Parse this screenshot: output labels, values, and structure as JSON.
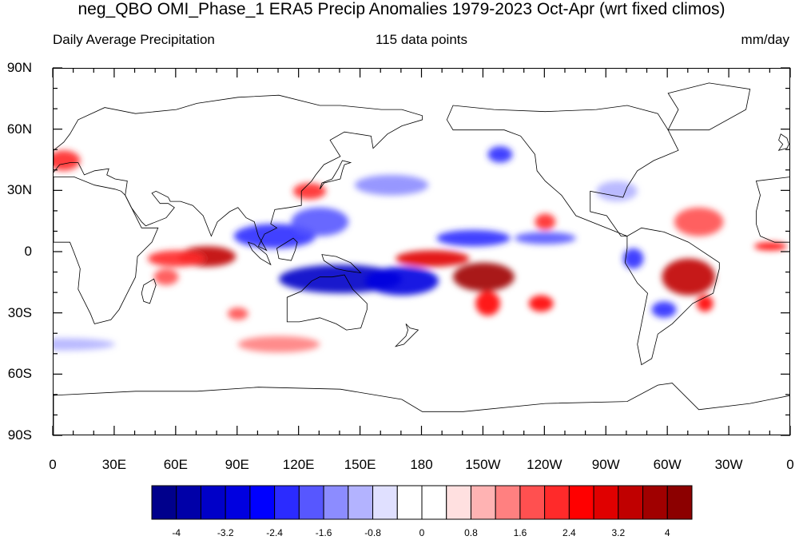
{
  "header": {
    "title": "neg_QBO OMI_Phase_1 ERA5 Precip Anomalies 1979-2023 Oct-Apr (wrt fixed climos)",
    "left": "Daily Average Precipitation",
    "center": "115 data points",
    "right": "mm/day"
  },
  "axes": {
    "lat_labels": [
      "90N",
      "60N",
      "30N",
      "0",
      "30S",
      "60S",
      "90S"
    ],
    "lat_values": [
      90,
      60,
      30,
      0,
      -30,
      -60,
      -90
    ],
    "lon_labels": [
      "0",
      "30E",
      "60E",
      "90E",
      "120E",
      "150E",
      "180",
      "150W",
      "120W",
      "90W",
      "60W",
      "30W",
      "0"
    ],
    "lon_values": [
      0,
      30,
      60,
      90,
      120,
      150,
      180,
      210,
      240,
      270,
      300,
      330,
      360
    ]
  },
  "colorbar": {
    "labels": [
      "-4",
      "-3.2",
      "-2.4",
      "-1.6",
      "-0.8",
      "0",
      "0.8",
      "1.6",
      "2.4",
      "3.2",
      "4"
    ],
    "label_values": [
      -4,
      -3.2,
      -2.4,
      -1.6,
      -0.8,
      0,
      0.8,
      1.6,
      2.4,
      3.2,
      4
    ],
    "colors": [
      "#00008c",
      "#0000a8",
      "#0000c8",
      "#0000e0",
      "#0000ff",
      "#2b2bff",
      "#5757ff",
      "#8c8cff",
      "#b3b3ff",
      "#e0e0ff",
      "#ffffff",
      "#ffffff",
      "#ffe0e0",
      "#ffb3b3",
      "#ff8080",
      "#ff5050",
      "#ff2a2a",
      "#ff0000",
      "#e00000",
      "#c00000",
      "#a00000",
      "#8c0000"
    ]
  },
  "map_data": {
    "lon_range": [
      0,
      360
    ],
    "lat_range": [
      -90,
      90
    ],
    "anomalies": [
      {
        "lon": 75,
        "lat": -2,
        "rx": 14,
        "ry": 5,
        "value": 3.2
      },
      {
        "lon": 60,
        "lat": -3,
        "rx": 14,
        "ry": 4,
        "value": 2.0
      },
      {
        "lon": 55,
        "lat": -12,
        "rx": 6,
        "ry": 4,
        "value": 1.6
      },
      {
        "lon": 90,
        "lat": -30,
        "rx": 5,
        "ry": 3,
        "value": 1.6
      },
      {
        "lon": 108,
        "lat": 8,
        "rx": 20,
        "ry": 6,
        "value": -2.4
      },
      {
        "lon": 130,
        "lat": 15,
        "rx": 14,
        "ry": 7,
        "value": -2.0
      },
      {
        "lon": 140,
        "lat": -13,
        "rx": 30,
        "ry": 7,
        "value": -3.6
      },
      {
        "lon": 170,
        "lat": -14,
        "rx": 18,
        "ry": 7,
        "value": -3.0
      },
      {
        "lon": 185,
        "lat": -3,
        "rx": 18,
        "ry": 4,
        "value": 2.8
      },
      {
        "lon": 210,
        "lat": -12,
        "rx": 15,
        "ry": 7,
        "value": 3.6
      },
      {
        "lon": 212,
        "lat": -25,
        "rx": 6,
        "ry": 6,
        "value": 2.4
      },
      {
        "lon": 238,
        "lat": -25,
        "rx": 6,
        "ry": 4,
        "value": 2.4
      },
      {
        "lon": 205,
        "lat": 7,
        "rx": 18,
        "ry": 4,
        "value": -2.4
      },
      {
        "lon": 240,
        "lat": 7,
        "rx": 15,
        "ry": 3,
        "value": -2.0
      },
      {
        "lon": 283,
        "lat": -3,
        "rx": 5,
        "ry": 5,
        "value": -2.4
      },
      {
        "lon": 310,
        "lat": -12,
        "rx": 13,
        "ry": 9,
        "value": 3.2
      },
      {
        "lon": 318,
        "lat": -25,
        "rx": 4,
        "ry": 4,
        "value": 2.4
      },
      {
        "lon": 298,
        "lat": -28,
        "rx": 6,
        "ry": 4,
        "value": -2.4
      },
      {
        "lon": 350,
        "lat": 3,
        "rx": 8,
        "ry": 2,
        "value": 2.4
      },
      {
        "lon": 5,
        "lat": 45,
        "rx": 8,
        "ry": 5,
        "value": 2.0
      },
      {
        "lon": 125,
        "lat": 30,
        "rx": 8,
        "ry": 4,
        "value": 2.0
      },
      {
        "lon": 165,
        "lat": 33,
        "rx": 18,
        "ry": 5,
        "value": -1.6
      },
      {
        "lon": 218,
        "lat": 48,
        "rx": 6,
        "ry": 4,
        "value": -2.4
      },
      {
        "lon": 315,
        "lat": 15,
        "rx": 12,
        "ry": 7,
        "value": 1.6
      },
      {
        "lon": 275,
        "lat": 30,
        "rx": 10,
        "ry": 5,
        "value": -1.2
      },
      {
        "lon": 240,
        "lat": 15,
        "rx": 5,
        "ry": 4,
        "value": 2.0
      },
      {
        "lon": 5,
        "lat": -45,
        "rx": 25,
        "ry": 3,
        "value": -1.2
      },
      {
        "lon": 110,
        "lat": -45,
        "rx": 20,
        "ry": 4,
        "value": 1.2
      }
    ],
    "land": [
      {
        "name": "north-america",
        "points": [
          [
            192,
            65
          ],
          [
            195,
            72
          ],
          [
            215,
            70
          ],
          [
            240,
            69
          ],
          [
            265,
            70
          ],
          [
            280,
            72
          ],
          [
            295,
            68
          ],
          [
            300,
            60
          ],
          [
            305,
            50
          ],
          [
            293,
            45
          ],
          [
            285,
            40
          ],
          [
            280,
            32
          ],
          [
            278,
            27
          ],
          [
            262,
            30
          ],
          [
            262,
            20
          ],
          [
            270,
            18
          ],
          [
            277,
            8
          ],
          [
            280,
            8
          ],
          [
            255,
            18
          ],
          [
            248,
            28
          ],
          [
            240,
            35
          ],
          [
            236,
            40
          ],
          [
            235,
            48
          ],
          [
            228,
            57
          ],
          [
            220,
            60
          ],
          [
            205,
            60
          ],
          [
            195,
            60
          ]
        ]
      },
      {
        "name": "greenland",
        "points": [
          [
            300,
            60
          ],
          [
            305,
            70
          ],
          [
            300,
            78
          ],
          [
            320,
            83
          ],
          [
            340,
            80
          ],
          [
            338,
            70
          ],
          [
            320,
            60
          ]
        ]
      },
      {
        "name": "south-america",
        "points": [
          [
            280,
            8
          ],
          [
            287,
            12
          ],
          [
            298,
            10
          ],
          [
            310,
            5
          ],
          [
            325,
            -5
          ],
          [
            325,
            -8
          ],
          [
            322,
            -20
          ],
          [
            312,
            -25
          ],
          [
            302,
            -35
          ],
          [
            295,
            -40
          ],
          [
            292,
            -52
          ],
          [
            287,
            -55
          ],
          [
            285,
            -45
          ],
          [
            287,
            -35
          ],
          [
            290,
            -20
          ],
          [
            285,
            -15
          ],
          [
            279,
            -5
          ],
          [
            280,
            2
          ]
        ]
      },
      {
        "name": "africa",
        "points": [
          [
            343,
            35
          ],
          [
            345,
            28
          ],
          [
            343,
            20
          ],
          [
            343,
            14
          ],
          [
            345,
            8
          ],
          [
            352,
            5
          ],
          [
            360,
            5
          ],
          [
            360,
            37
          ]
        ]
      },
      {
        "name": "africa-east",
        "points": [
          [
            0,
            37
          ],
          [
            10,
            37
          ],
          [
            20,
            33
          ],
          [
            30,
            31
          ],
          [
            33,
            30
          ],
          [
            35,
            28
          ],
          [
            43,
            12
          ],
          [
            51,
            12
          ],
          [
            48,
            5
          ],
          [
            41,
            -2
          ],
          [
            40,
            -12
          ],
          [
            36,
            -20
          ],
          [
            32,
            -28
          ],
          [
            28,
            -33
          ],
          [
            20,
            -35
          ],
          [
            18,
            -30
          ],
          [
            12,
            -18
          ],
          [
            13,
            -8
          ],
          [
            10,
            0
          ],
          [
            8,
            5
          ],
          [
            0,
            5
          ]
        ]
      },
      {
        "name": "eurasia",
        "points": [
          [
            0,
            43
          ],
          [
            0,
            50
          ],
          [
            5,
            54
          ],
          [
            8,
            58
          ],
          [
            12,
            65
          ],
          [
            25,
            71
          ],
          [
            40,
            68
          ],
          [
            60,
            70
          ],
          [
            70,
            73
          ],
          [
            90,
            76
          ],
          [
            110,
            77
          ],
          [
            130,
            72
          ],
          [
            140,
            72
          ],
          [
            160,
            70
          ],
          [
            170,
            70
          ],
          [
            180,
            67
          ],
          [
            180,
            65
          ],
          [
            170,
            62
          ],
          [
            163,
            58
          ],
          [
            156,
            51
          ],
          [
            155,
            57
          ],
          [
            142,
            59
          ],
          [
            135,
            55
          ],
          [
            140,
            47
          ],
          [
            132,
            43
          ],
          [
            128,
            38
          ],
          [
            126,
            35
          ],
          [
            121,
            30
          ],
          [
            121,
            23
          ],
          [
            115,
            22
          ],
          [
            108,
            21
          ],
          [
            106,
            14
          ],
          [
            109,
            12
          ],
          [
            103,
            9
          ],
          [
            100,
            3
          ],
          [
            104,
            1
          ],
          [
            100,
            8
          ],
          [
            98,
            15
          ],
          [
            94,
            17
          ],
          [
            90,
            22
          ],
          [
            86,
            20
          ],
          [
            80,
            15
          ],
          [
            77,
            8
          ],
          [
            73,
            18
          ],
          [
            68,
            23
          ],
          [
            62,
            25
          ],
          [
            57,
            25
          ],
          [
            56,
            27
          ],
          [
            50,
            30
          ],
          [
            48,
            29
          ],
          [
            52,
            24
          ],
          [
            56,
            24
          ],
          [
            59,
            22
          ],
          [
            55,
            17
          ],
          [
            45,
            13
          ],
          [
            43,
            15
          ],
          [
            38,
            22
          ],
          [
            35,
            28
          ],
          [
            36,
            35
          ],
          [
            30,
            36
          ],
          [
            26,
            38
          ],
          [
            27,
            41
          ],
          [
            20,
            40
          ],
          [
            15,
            38
          ],
          [
            12,
            44
          ],
          [
            8,
            44
          ],
          [
            3,
            43
          ],
          [
            -1,
            38
          ]
        ]
      },
      {
        "name": "australia",
        "points": [
          [
            114,
            -22
          ],
          [
            114,
            -34
          ],
          [
            120,
            -34
          ],
          [
            130,
            -32
          ],
          [
            138,
            -35
          ],
          [
            143,
            -38
          ],
          [
            150,
            -37
          ],
          [
            153,
            -28
          ],
          [
            153,
            -25
          ],
          [
            146,
            -18
          ],
          [
            142,
            -11
          ],
          [
            136,
            -12
          ],
          [
            130,
            -12
          ],
          [
            126,
            -14
          ],
          [
            121,
            -19
          ]
        ]
      },
      {
        "name": "antarctica",
        "points": [
          [
            0,
            -70
          ],
          [
            40,
            -68
          ],
          [
            70,
            -68
          ],
          [
            100,
            -66
          ],
          [
            140,
            -67
          ],
          [
            170,
            -72
          ],
          [
            180,
            -78
          ],
          [
            200,
            -78
          ],
          [
            240,
            -74
          ],
          [
            280,
            -73
          ],
          [
            295,
            -65
          ],
          [
            302,
            -64
          ],
          [
            315,
            -77
          ],
          [
            340,
            -74
          ],
          [
            360,
            -70
          ],
          [
            360,
            -90
          ],
          [
            0,
            -90
          ]
        ]
      },
      {
        "name": "uk",
        "points": [
          [
            354,
            50
          ],
          [
            358,
            51
          ],
          [
            359,
            53
          ],
          [
            358,
            56
          ],
          [
            355,
            58
          ],
          [
            354,
            55
          ],
          [
            356,
            53
          ]
        ]
      },
      {
        "name": "japan",
        "points": [
          [
            130,
            31
          ],
          [
            132,
            34
          ],
          [
            136,
            35
          ],
          [
            140,
            36
          ],
          [
            141,
            40
          ],
          [
            142,
            43
          ],
          [
            145,
            44
          ],
          [
            141,
            45
          ],
          [
            139,
            41
          ],
          [
            136,
            36
          ],
          [
            131,
            34
          ]
        ]
      },
      {
        "name": "borneo",
        "points": [
          [
            109,
            2
          ],
          [
            117,
            7
          ],
          [
            119,
            5
          ],
          [
            118,
            1
          ],
          [
            116,
            -4
          ],
          [
            110,
            -3
          ]
        ]
      },
      {
        "name": "sumatra",
        "points": [
          [
            95,
            5
          ],
          [
            98,
            4
          ],
          [
            104,
            -1
          ],
          [
            106,
            -6
          ],
          [
            101,
            -3
          ],
          [
            97,
            1
          ]
        ]
      },
      {
        "name": "new-guinea",
        "points": [
          [
            131,
            -1
          ],
          [
            138,
            -2
          ],
          [
            145,
            -5
          ],
          [
            150,
            -10
          ],
          [
            143,
            -9
          ],
          [
            138,
            -8
          ],
          [
            132,
            -4
          ]
        ]
      },
      {
        "name": "madagascar",
        "points": [
          [
            44,
            -16
          ],
          [
            49,
            -13
          ],
          [
            50,
            -16
          ],
          [
            47,
            -25
          ],
          [
            44,
            -24
          ],
          [
            43,
            -20
          ]
        ]
      },
      {
        "name": "new-zealand",
        "points": [
          [
            172,
            -35
          ],
          [
            174,
            -37
          ],
          [
            178,
            -38
          ],
          [
            176,
            -40
          ],
          [
            174,
            -42
          ],
          [
            171,
            -45
          ],
          [
            167,
            -46
          ],
          [
            169,
            -44
          ],
          [
            172,
            -41
          ],
          [
            173,
            -38
          ]
        ]
      }
    ]
  }
}
